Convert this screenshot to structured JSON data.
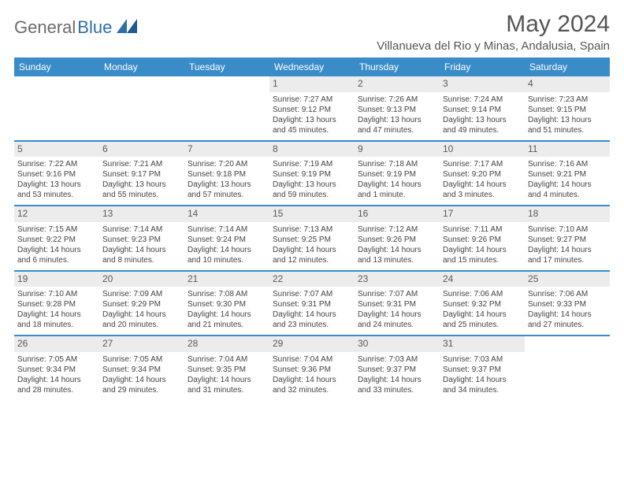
{
  "logo": {
    "text1": "General",
    "text2": "Blue"
  },
  "title": "May 2024",
  "location": "Villanueva del Rio y Minas, Andalusia, Spain",
  "colors": {
    "header_bg": "#3a8cc9",
    "header_text": "#ffffff",
    "daynum_bg": "#ececec",
    "border": "#3a8cc9",
    "text": "#444444",
    "title_color": "#555555",
    "logo_gray": "#6b6b6b",
    "logo_blue": "#2f6fa8"
  },
  "day_names": [
    "Sunday",
    "Monday",
    "Tuesday",
    "Wednesday",
    "Thursday",
    "Friday",
    "Saturday"
  ],
  "weeks": [
    [
      {
        "empty": true
      },
      {
        "empty": true
      },
      {
        "empty": true
      },
      {
        "day": "1",
        "sunrise": "Sunrise: 7:27 AM",
        "sunset": "Sunset: 9:12 PM",
        "daylight1": "Daylight: 13 hours",
        "daylight2": "and 45 minutes."
      },
      {
        "day": "2",
        "sunrise": "Sunrise: 7:26 AM",
        "sunset": "Sunset: 9:13 PM",
        "daylight1": "Daylight: 13 hours",
        "daylight2": "and 47 minutes."
      },
      {
        "day": "3",
        "sunrise": "Sunrise: 7:24 AM",
        "sunset": "Sunset: 9:14 PM",
        "daylight1": "Daylight: 13 hours",
        "daylight2": "and 49 minutes."
      },
      {
        "day": "4",
        "sunrise": "Sunrise: 7:23 AM",
        "sunset": "Sunset: 9:15 PM",
        "daylight1": "Daylight: 13 hours",
        "daylight2": "and 51 minutes."
      }
    ],
    [
      {
        "day": "5",
        "sunrise": "Sunrise: 7:22 AM",
        "sunset": "Sunset: 9:16 PM",
        "daylight1": "Daylight: 13 hours",
        "daylight2": "and 53 minutes."
      },
      {
        "day": "6",
        "sunrise": "Sunrise: 7:21 AM",
        "sunset": "Sunset: 9:17 PM",
        "daylight1": "Daylight: 13 hours",
        "daylight2": "and 55 minutes."
      },
      {
        "day": "7",
        "sunrise": "Sunrise: 7:20 AM",
        "sunset": "Sunset: 9:18 PM",
        "daylight1": "Daylight: 13 hours",
        "daylight2": "and 57 minutes."
      },
      {
        "day": "8",
        "sunrise": "Sunrise: 7:19 AM",
        "sunset": "Sunset: 9:19 PM",
        "daylight1": "Daylight: 13 hours",
        "daylight2": "and 59 minutes."
      },
      {
        "day": "9",
        "sunrise": "Sunrise: 7:18 AM",
        "sunset": "Sunset: 9:19 PM",
        "daylight1": "Daylight: 14 hours",
        "daylight2": "and 1 minute."
      },
      {
        "day": "10",
        "sunrise": "Sunrise: 7:17 AM",
        "sunset": "Sunset: 9:20 PM",
        "daylight1": "Daylight: 14 hours",
        "daylight2": "and 3 minutes."
      },
      {
        "day": "11",
        "sunrise": "Sunrise: 7:16 AM",
        "sunset": "Sunset: 9:21 PM",
        "daylight1": "Daylight: 14 hours",
        "daylight2": "and 4 minutes."
      }
    ],
    [
      {
        "day": "12",
        "sunrise": "Sunrise: 7:15 AM",
        "sunset": "Sunset: 9:22 PM",
        "daylight1": "Daylight: 14 hours",
        "daylight2": "and 6 minutes."
      },
      {
        "day": "13",
        "sunrise": "Sunrise: 7:14 AM",
        "sunset": "Sunset: 9:23 PM",
        "daylight1": "Daylight: 14 hours",
        "daylight2": "and 8 minutes."
      },
      {
        "day": "14",
        "sunrise": "Sunrise: 7:14 AM",
        "sunset": "Sunset: 9:24 PM",
        "daylight1": "Daylight: 14 hours",
        "daylight2": "and 10 minutes."
      },
      {
        "day": "15",
        "sunrise": "Sunrise: 7:13 AM",
        "sunset": "Sunset: 9:25 PM",
        "daylight1": "Daylight: 14 hours",
        "daylight2": "and 12 minutes."
      },
      {
        "day": "16",
        "sunrise": "Sunrise: 7:12 AM",
        "sunset": "Sunset: 9:26 PM",
        "daylight1": "Daylight: 14 hours",
        "daylight2": "and 13 minutes."
      },
      {
        "day": "17",
        "sunrise": "Sunrise: 7:11 AM",
        "sunset": "Sunset: 9:26 PM",
        "daylight1": "Daylight: 14 hours",
        "daylight2": "and 15 minutes."
      },
      {
        "day": "18",
        "sunrise": "Sunrise: 7:10 AM",
        "sunset": "Sunset: 9:27 PM",
        "daylight1": "Daylight: 14 hours",
        "daylight2": "and 17 minutes."
      }
    ],
    [
      {
        "day": "19",
        "sunrise": "Sunrise: 7:10 AM",
        "sunset": "Sunset: 9:28 PM",
        "daylight1": "Daylight: 14 hours",
        "daylight2": "and 18 minutes."
      },
      {
        "day": "20",
        "sunrise": "Sunrise: 7:09 AM",
        "sunset": "Sunset: 9:29 PM",
        "daylight1": "Daylight: 14 hours",
        "daylight2": "and 20 minutes."
      },
      {
        "day": "21",
        "sunrise": "Sunrise: 7:08 AM",
        "sunset": "Sunset: 9:30 PM",
        "daylight1": "Daylight: 14 hours",
        "daylight2": "and 21 minutes."
      },
      {
        "day": "22",
        "sunrise": "Sunrise: 7:07 AM",
        "sunset": "Sunset: 9:31 PM",
        "daylight1": "Daylight: 14 hours",
        "daylight2": "and 23 minutes."
      },
      {
        "day": "23",
        "sunrise": "Sunrise: 7:07 AM",
        "sunset": "Sunset: 9:31 PM",
        "daylight1": "Daylight: 14 hours",
        "daylight2": "and 24 minutes."
      },
      {
        "day": "24",
        "sunrise": "Sunrise: 7:06 AM",
        "sunset": "Sunset: 9:32 PM",
        "daylight1": "Daylight: 14 hours",
        "daylight2": "and 25 minutes."
      },
      {
        "day": "25",
        "sunrise": "Sunrise: 7:06 AM",
        "sunset": "Sunset: 9:33 PM",
        "daylight1": "Daylight: 14 hours",
        "daylight2": "and 27 minutes."
      }
    ],
    [
      {
        "day": "26",
        "sunrise": "Sunrise: 7:05 AM",
        "sunset": "Sunset: 9:34 PM",
        "daylight1": "Daylight: 14 hours",
        "daylight2": "and 28 minutes."
      },
      {
        "day": "27",
        "sunrise": "Sunrise: 7:05 AM",
        "sunset": "Sunset: 9:34 PM",
        "daylight1": "Daylight: 14 hours",
        "daylight2": "and 29 minutes."
      },
      {
        "day": "28",
        "sunrise": "Sunrise: 7:04 AM",
        "sunset": "Sunset: 9:35 PM",
        "daylight1": "Daylight: 14 hours",
        "daylight2": "and 31 minutes."
      },
      {
        "day": "29",
        "sunrise": "Sunrise: 7:04 AM",
        "sunset": "Sunset: 9:36 PM",
        "daylight1": "Daylight: 14 hours",
        "daylight2": "and 32 minutes."
      },
      {
        "day": "30",
        "sunrise": "Sunrise: 7:03 AM",
        "sunset": "Sunset: 9:37 PM",
        "daylight1": "Daylight: 14 hours",
        "daylight2": "and 33 minutes."
      },
      {
        "day": "31",
        "sunrise": "Sunrise: 7:03 AM",
        "sunset": "Sunset: 9:37 PM",
        "daylight1": "Daylight: 14 hours",
        "daylight2": "and 34 minutes."
      },
      {
        "empty": true
      }
    ]
  ]
}
